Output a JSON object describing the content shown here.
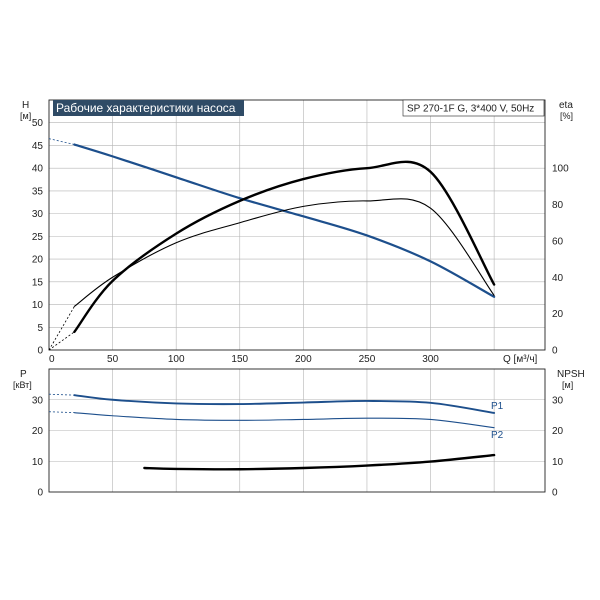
{
  "chart_data": [
    {
      "type": "line",
      "title": "Рабочие характеристики насоса",
      "model": "SP 270-1F G, 3*400 V, 50Hz",
      "ylabel": "H",
      "yunit": "[м]",
      "y2label": "eta",
      "y2unit": "[%]",
      "xlabel": "Q [м³/ч]",
      "xlim": [
        0,
        390
      ],
      "ylim": [
        0,
        55
      ],
      "y2lim": [
        0,
        137.5
      ],
      "xticks": [
        "0",
        "50",
        "100",
        "150",
        "200",
        "250",
        "300"
      ],
      "yticks": [
        "0",
        "5",
        "10",
        "15",
        "20",
        "25",
        "30",
        "35",
        "40",
        "45",
        "50"
      ],
      "y2ticks": [
        "0",
        "20",
        "40",
        "60",
        "80",
        "100"
      ],
      "grid": true,
      "series": [
        {
          "id": "H",
          "axis": "left",
          "color": "#1d4f8c",
          "x": [
            20,
            50,
            100,
            150,
            200,
            250,
            300,
            350
          ],
          "y": [
            45.2,
            42.6,
            38.0,
            33.4,
            29.4,
            25.2,
            19.5,
            11.7
          ],
          "extrapolated": {
            "x": [
              0,
              20
            ],
            "y": [
              46.5,
              45.2
            ]
          }
        },
        {
          "id": "eta-1",
          "axis": "right",
          "color": "#000000",
          "x": [
            20,
            50,
            100,
            150,
            200,
            250,
            300,
            350
          ],
          "y": [
            24,
            40,
            59,
            70,
            79,
            82,
            78,
            30
          ],
          "extrapolated": {
            "x": [
              0,
              20
            ],
            "y": [
              0,
              24
            ]
          }
        },
        {
          "id": "eta-2",
          "axis": "right",
          "color": "#000000",
          "x": [
            20,
            50,
            100,
            150,
            200,
            250,
            300,
            350
          ],
          "y": [
            10,
            38,
            64,
            82,
            94,
            100,
            98,
            36
          ],
          "extrapolated": {
            "x": [
              0,
              20
            ],
            "y": [
              0,
              10
            ]
          }
        }
      ]
    },
    {
      "type": "line",
      "ylabel": "P",
      "yunit": "[кВт]",
      "y2label": "NPSH",
      "y2unit": "[м]",
      "ylim": [
        0,
        40
      ],
      "y2lim": [
        0,
        40
      ],
      "yticks": [
        "0",
        "10",
        "20",
        "30"
      ],
      "y2ticks": [
        "0",
        "10",
        "20",
        "30"
      ],
      "grid": true,
      "series": [
        {
          "name": "P1",
          "axis": "left",
          "color": "#1d4f8c",
          "x": [
            20,
            50,
            100,
            150,
            200,
            250,
            300,
            350
          ],
          "y": [
            31.5,
            30.0,
            28.8,
            28.6,
            29.1,
            29.6,
            29.0,
            25.7
          ],
          "extrapolated": {
            "x": [
              0,
              20
            ],
            "y": [
              31.8,
              31.5
            ]
          }
        },
        {
          "name": "P2",
          "axis": "left",
          "color": "#1d4f8c",
          "x": [
            20,
            50,
            100,
            150,
            200,
            250,
            300,
            350
          ],
          "y": [
            25.8,
            24.8,
            23.6,
            23.3,
            23.6,
            24.0,
            23.6,
            20.9
          ],
          "extrapolated": {
            "x": [
              0,
              20
            ],
            "y": [
              26.1,
              25.8
            ]
          }
        },
        {
          "id": "NPSH",
          "axis": "right",
          "color": "#000000",
          "x": [
            75,
            100,
            150,
            200,
            250,
            300,
            350
          ],
          "y": [
            7.8,
            7.5,
            7.4,
            7.8,
            8.6,
            9.9,
            12.0
          ]
        }
      ]
    }
  ]
}
